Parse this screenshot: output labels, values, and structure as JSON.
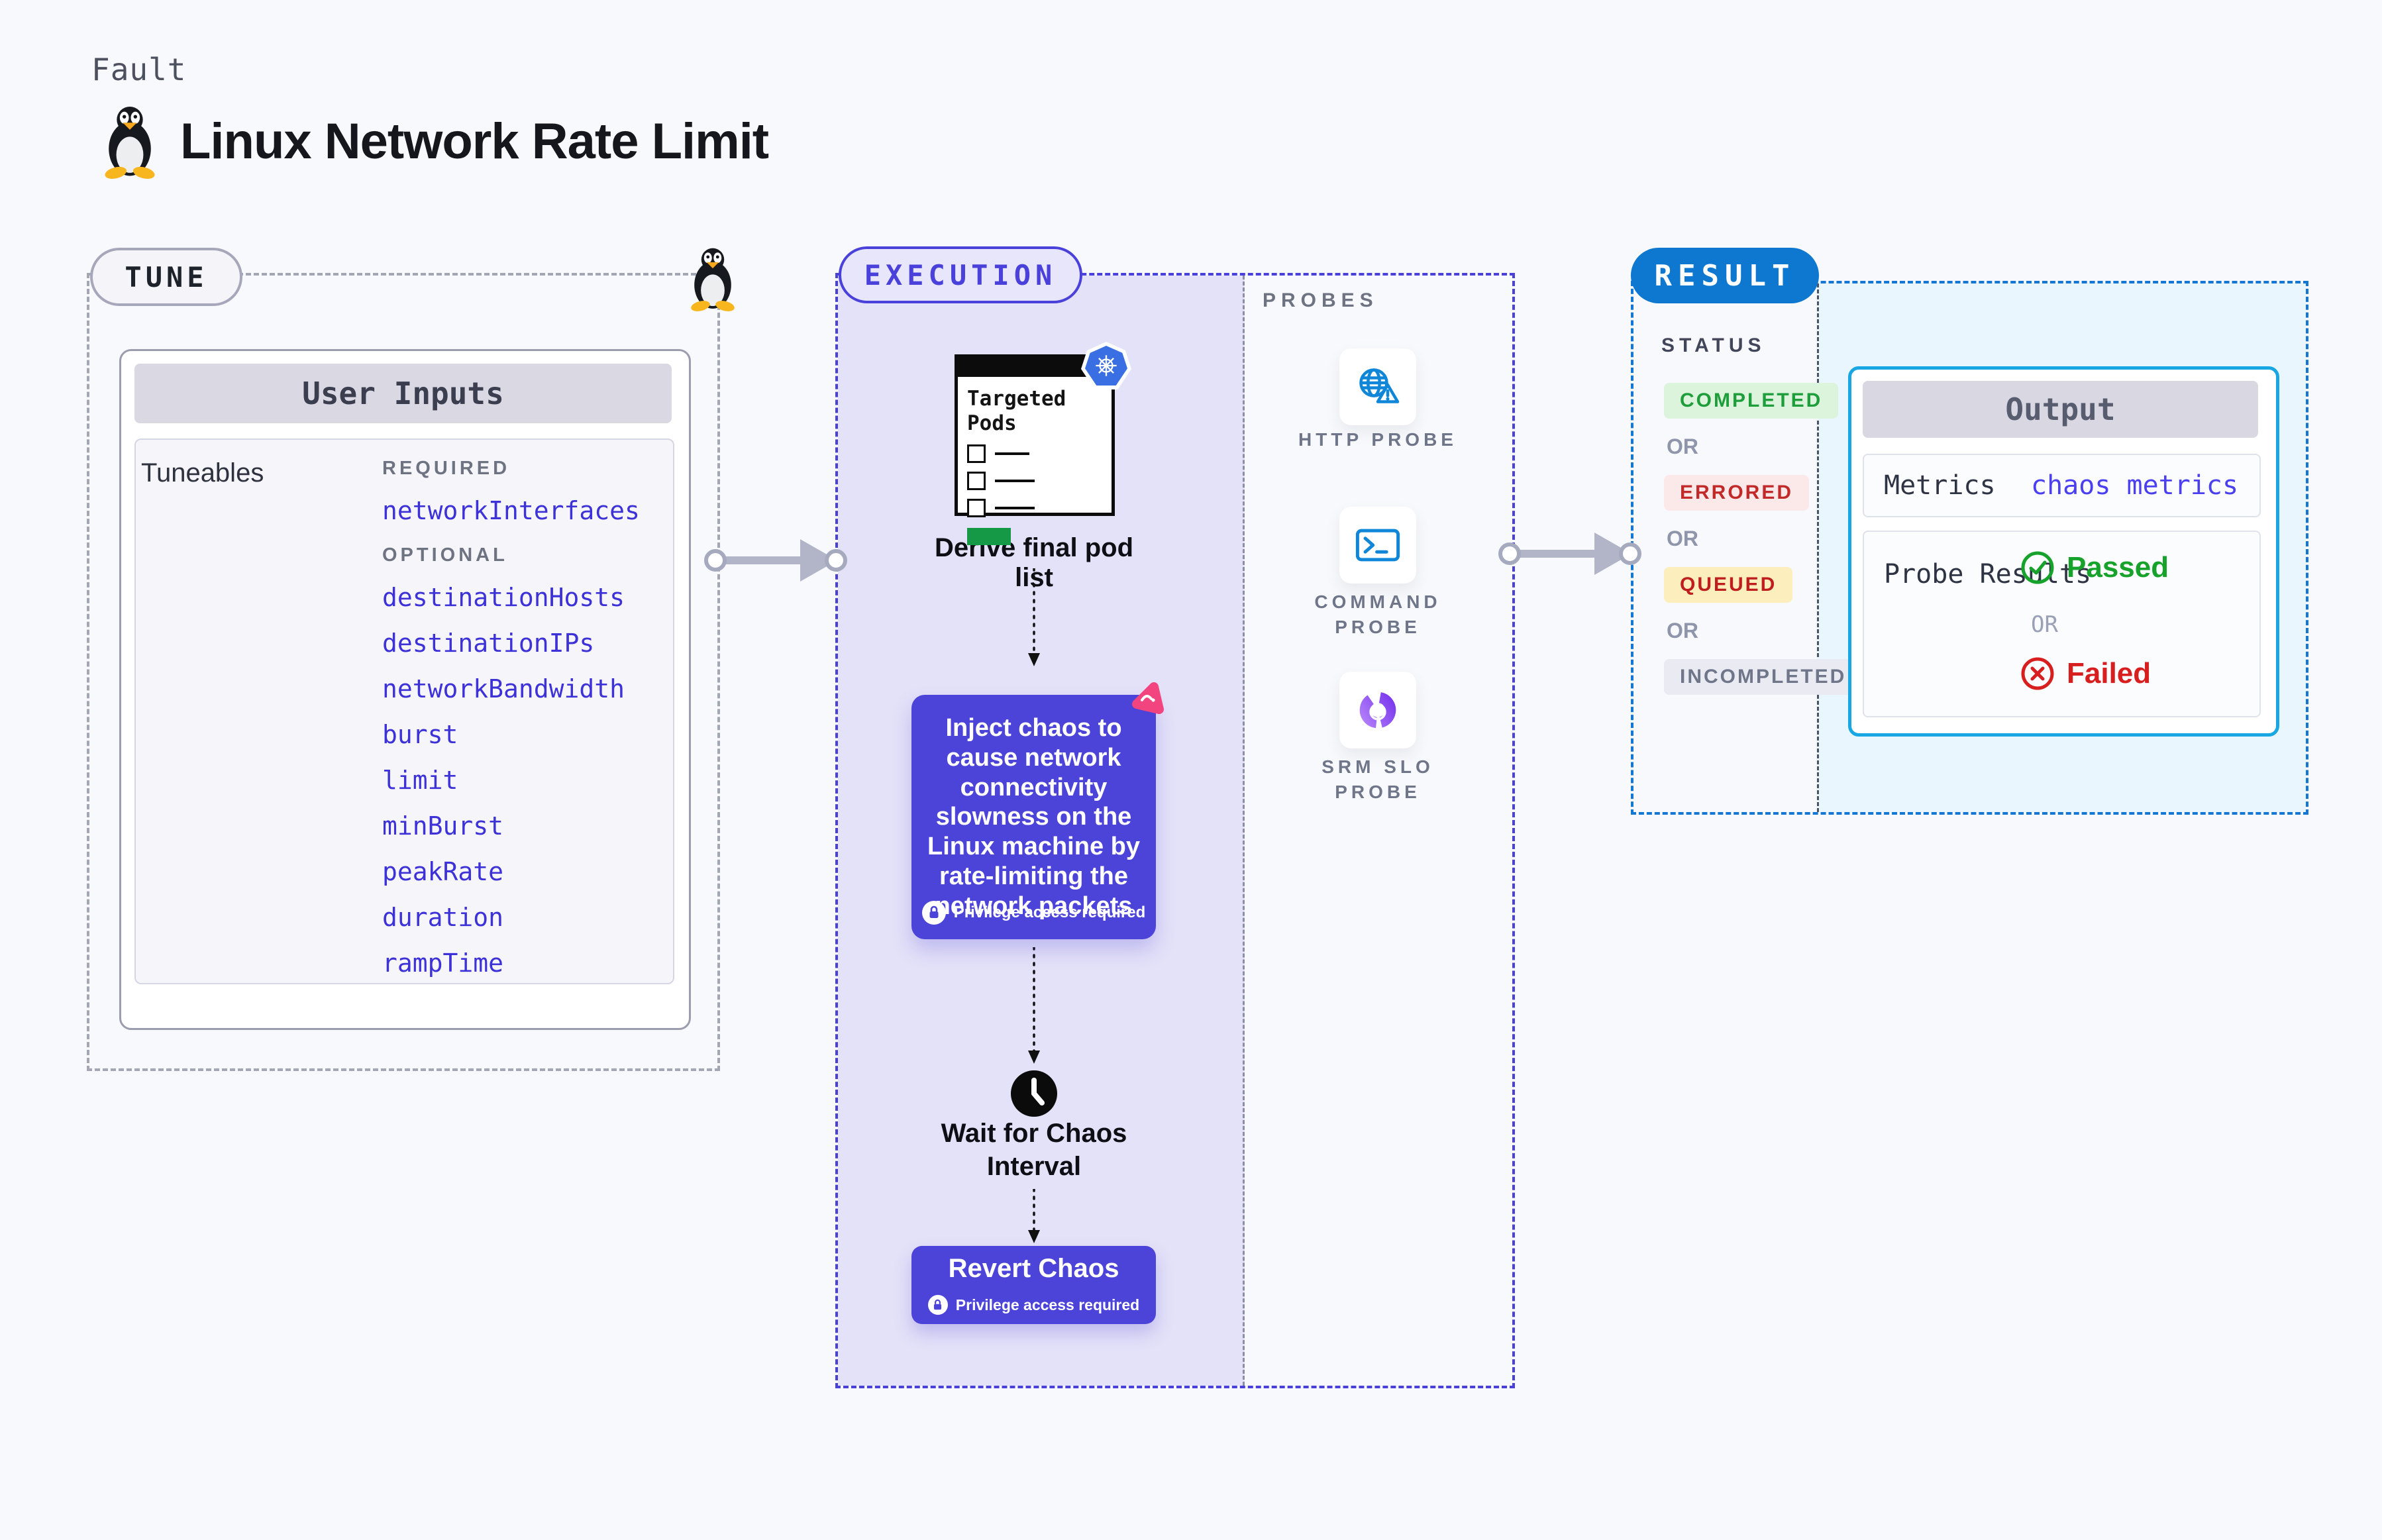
{
  "header": {
    "kind_label": "Fault",
    "title": "Linux Network Rate Limit"
  },
  "tune": {
    "label": "TUNE",
    "card_title": "User Inputs",
    "tuneables_label": "Tuneables",
    "sections": [
      {
        "label": "REQUIRED",
        "items": [
          "networkInterfaces"
        ]
      },
      {
        "label": "OPTIONAL",
        "items": [
          "destinationHosts",
          "destinationIPs",
          "networkBandwidth",
          "burst",
          "limit",
          "minBurst",
          "peakRate",
          "duration",
          "rampTime"
        ]
      }
    ]
  },
  "execution": {
    "label": "EXECUTION",
    "targeted_pods_title": "Targeted Pods",
    "derive_label": "Derive final pod list",
    "inject_text": "Inject chaos to cause network connectivity slowness on the Linux machine by rate-limiting the network packets",
    "privilege_label": "Privilege access required",
    "wait_label": "Wait for Chaos Interval",
    "revert_label": "Revert Chaos"
  },
  "probes": {
    "label": "PROBES",
    "items": [
      {
        "label": "HTTP PROBE",
        "icon": "globe-alert-icon"
      },
      {
        "label": "COMMAND PROBE",
        "icon": "terminal-icon"
      },
      {
        "label": "SRM SLO PROBE",
        "icon": "slo-donut-icon"
      }
    ]
  },
  "result": {
    "label": "RESULT",
    "status_label": "STATUS",
    "or_label": "OR",
    "statuses": [
      {
        "label": "COMPLETED",
        "bg": "#dcf3dc",
        "color": "#1e9e3a"
      },
      {
        "label": "ERRORED",
        "bg": "#fbe9e9",
        "color": "#c22a2a"
      },
      {
        "label": "QUEUED",
        "bg": "#fdeebd",
        "color": "#bf1e1e"
      },
      {
        "label": "INCOMPLETED",
        "bg": "#e9eaf2",
        "color": "#70768a"
      }
    ],
    "output": {
      "title": "Output",
      "metrics_label": "Metrics",
      "metrics_value": "chaos metrics",
      "probe_results_label": "Probe Results",
      "passed_label": "Passed",
      "or_label": "OR",
      "failed_label": "Failed"
    }
  },
  "colors": {
    "accent_indigo": "#4a41da",
    "inject_purple": "#4c43d9",
    "result_blue": "#0e77d0",
    "output_border_cyan": "#18a7e3",
    "probe_icon_blue": "#1086d8",
    "passed_green": "#17a22b",
    "failed_red": "#d71f1f",
    "link_indigo": "#3d31d8"
  }
}
